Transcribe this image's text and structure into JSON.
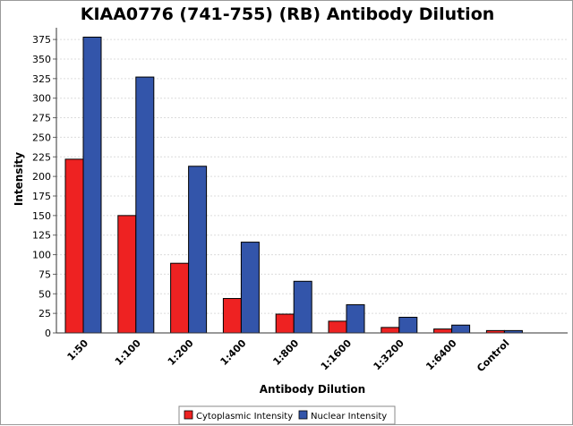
{
  "chart_data": {
    "type": "bar",
    "title": "KIAA0776 (741-755) (RB) Antibody Dilution",
    "xlabel": "Antibody Dilution",
    "ylabel": "Intensity",
    "ylim": [
      0,
      390
    ],
    "yticks": [
      0,
      25,
      50,
      75,
      100,
      125,
      150,
      175,
      200,
      225,
      250,
      275,
      300,
      325,
      350,
      375
    ],
    "grid": true,
    "legend_position": "bottom-center",
    "categories": [
      "1:50",
      "1:100",
      "1:200",
      "1:400",
      "1:800",
      "1:1600",
      "1:3200",
      "1:6400",
      "Control"
    ],
    "series": [
      {
        "name": "Cytoplasmic Intensity",
        "color": "#ee2222",
        "values": [
          222,
          150,
          89,
          44,
          24,
          15,
          7,
          5,
          3
        ]
      },
      {
        "name": "Nuclear Intensity",
        "color": "#3355aa",
        "values": [
          378,
          327,
          213,
          116,
          66,
          36,
          20,
          10,
          3
        ]
      }
    ]
  }
}
